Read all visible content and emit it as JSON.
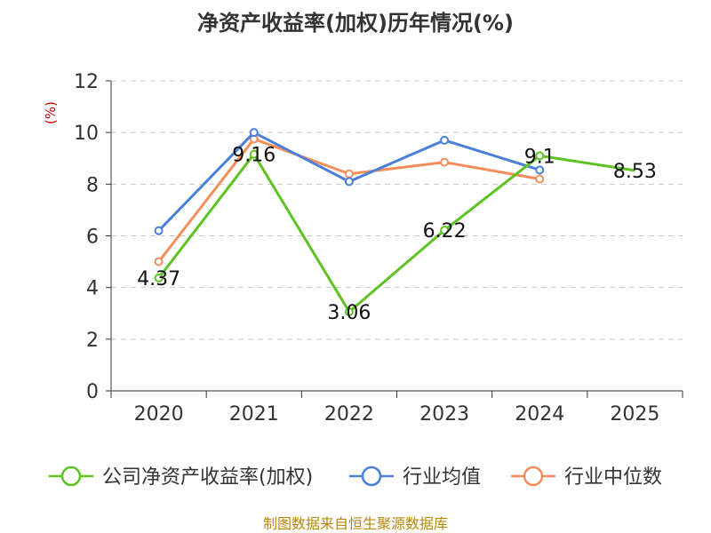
{
  "chart_data": {
    "type": "line",
    "title": "净资产收益率(加权)历年情况(%)",
    "ylabel": "(%)",
    "xlabel": "",
    "categories": [
      "2020",
      "2021",
      "2022",
      "2023",
      "2024",
      "2025"
    ],
    "ylim": [
      0,
      12
    ],
    "yticks": [
      0,
      2,
      4,
      6,
      8,
      10,
      12
    ],
    "grid": true,
    "legend_position": "bottom",
    "series": [
      {
        "name": "公司净资产收益率(加权)",
        "color": "#5cc322",
        "values": [
          4.37,
          9.16,
          3.06,
          6.22,
          9.1,
          8.53
        ],
        "labels": [
          "4.37",
          "9.16",
          "3.06",
          "6.22",
          "9.1",
          "8.53"
        ],
        "show_markers": [
          true,
          true,
          true,
          true,
          true,
          false
        ]
      },
      {
        "name": "行业均值",
        "color": "#4a7fdc",
        "values": [
          6.2,
          10.0,
          8.1,
          9.7,
          8.55,
          null
        ]
      },
      {
        "name": "行业中位数",
        "color": "#f58e5b",
        "values": [
          5.0,
          9.75,
          8.4,
          8.85,
          8.2,
          null
        ]
      }
    ],
    "source": "制图数据来自恒生聚源数据库"
  }
}
